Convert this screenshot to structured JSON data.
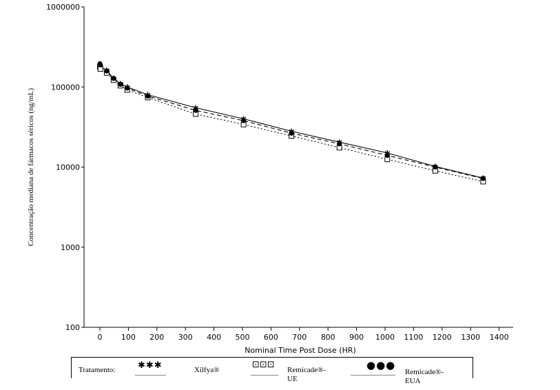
{
  "chart_data": {
    "type": "line",
    "xlabel": "Nominal Time Post Dose (HR)",
    "ylabel": "Concentração mediana de fármacos séricos (ng/mL)",
    "xlim": [
      -30,
      1400
    ],
    "ylim": [
      100,
      1000000
    ],
    "yscale": "log",
    "xticks": [
      0,
      100,
      200,
      300,
      400,
      500,
      600,
      700,
      800,
      900,
      1000,
      1100,
      1200,
      1300,
      1400
    ],
    "yticks": [
      100,
      1000,
      10000,
      100000,
      1000000
    ],
    "ytick_labels": [
      "100",
      "1000",
      "10000",
      "100000",
      "1000000"
    ],
    "grid": false,
    "legend_position": "bottom",
    "series": [
      {
        "name": "Xilfya®",
        "marker": "star",
        "line": "solid",
        "x": [
          0,
          2,
          24,
          48,
          72,
          96,
          168,
          336,
          504,
          672,
          840,
          1008,
          1176,
          1344
        ],
        "y": [
          185000,
          178000,
          162000,
          128000,
          110000,
          100000,
          80000,
          55000,
          40000,
          28000,
          20500,
          15000,
          10200,
          7300
        ]
      },
      {
        "name": "Remicade®-UE",
        "marker": "square",
        "line": "dotted",
        "x": [
          0,
          2,
          24,
          48,
          72,
          96,
          168,
          336,
          504,
          672,
          840,
          1008,
          1176,
          1344
        ],
        "y": [
          178000,
          168000,
          150000,
          122000,
          104000,
          92000,
          74000,
          46000,
          34000,
          24500,
          17500,
          12500,
          9000,
          6600
        ]
      },
      {
        "name": "Remicade®-EUA",
        "marker": "circle",
        "line": "dashed",
        "x": [
          0,
          2,
          24,
          48,
          72,
          96,
          168,
          336,
          504,
          672,
          840,
          1008,
          1176,
          1344
        ],
        "y": [
          195000,
          188000,
          158000,
          128000,
          108000,
          97000,
          77000,
          51000,
          38000,
          26500,
          19500,
          14000,
          10000,
          7200
        ]
      }
    ]
  },
  "legend": {
    "title": "Tratamento:",
    "items": [
      {
        "label_lines": [
          "Xilfya®"
        ],
        "symbol": "✱✱✱"
      },
      {
        "label_lines": [
          "Remicade®-",
          "UE"
        ],
        "symbol": "⊡⊡⊡"
      },
      {
        "label_lines": [
          "Remicade®-",
          "EUA"
        ],
        "symbol": "●●●"
      }
    ]
  }
}
